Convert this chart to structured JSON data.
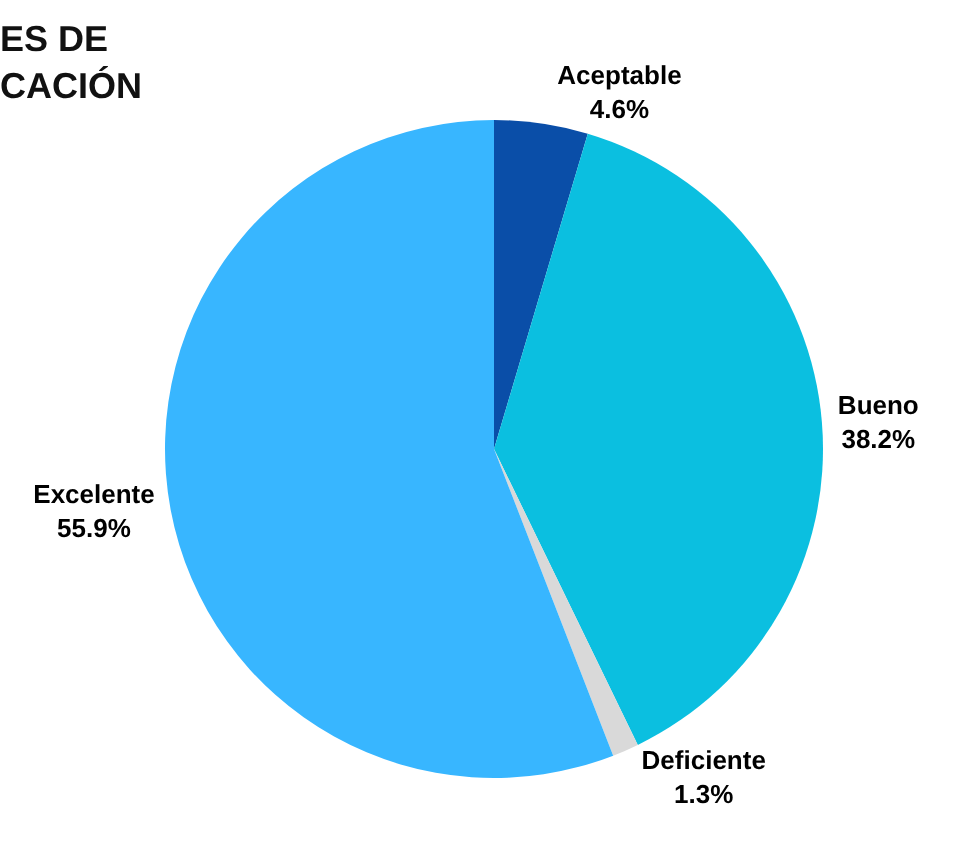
{
  "chart_data": {
    "type": "pie",
    "title": "ES DE\nCACIÓN",
    "categories": [
      "Aceptable",
      "Bueno",
      "Deficiente",
      "Excelente"
    ],
    "values": [
      4.6,
      38.2,
      1.3,
      55.9
    ],
    "value_labels": [
      "4.6%",
      "38.2%",
      "1.3%",
      "55.9%"
    ],
    "colors": [
      "#0a4ea8",
      "#0bbfe0",
      "#d9d9d9",
      "#38b6ff"
    ],
    "legend": false
  }
}
